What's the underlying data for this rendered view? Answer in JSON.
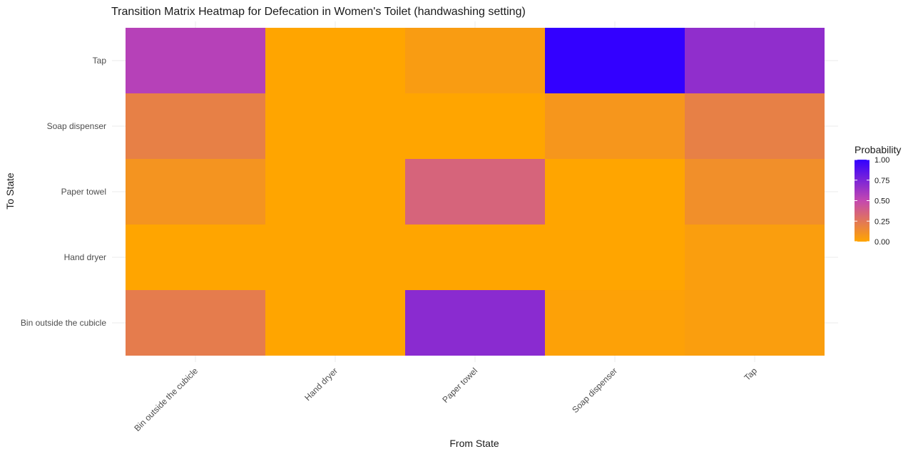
{
  "chart_data": {
    "type": "heatmap",
    "title": "Transition Matrix Heatmap for Defecation in Women's Toilet (handwashing setting)",
    "xlabel": "From State",
    "ylabel": "To State",
    "x_categories": [
      "Bin outside the cubicle",
      "Hand dryer",
      "Paper towel",
      "Soap dispenser",
      "Tap"
    ],
    "y_categories": [
      "Bin outside the cubicle",
      "Hand dryer",
      "Paper towel",
      "Soap dispenser",
      "Tap"
    ],
    "values": [
      [
        0.22,
        0.0,
        0.7,
        0.02,
        0.04
      ],
      [
        0.0,
        0.0,
        0.0,
        0.0,
        0.04
      ],
      [
        0.09,
        0.0,
        0.35,
        0.0,
        0.12
      ],
      [
        0.2,
        0.0,
        0.0,
        0.08,
        0.2
      ],
      [
        0.55,
        0.0,
        0.05,
        1.0,
        0.68
      ]
    ],
    "legend": {
      "title": "Probability",
      "ticks": [
        "0.00",
        "0.25",
        "0.50",
        "0.75",
        "1.00"
      ],
      "low_color": "#FFA500",
      "high_color": "#3300FF"
    },
    "grid": true,
    "legend_position": "right"
  }
}
